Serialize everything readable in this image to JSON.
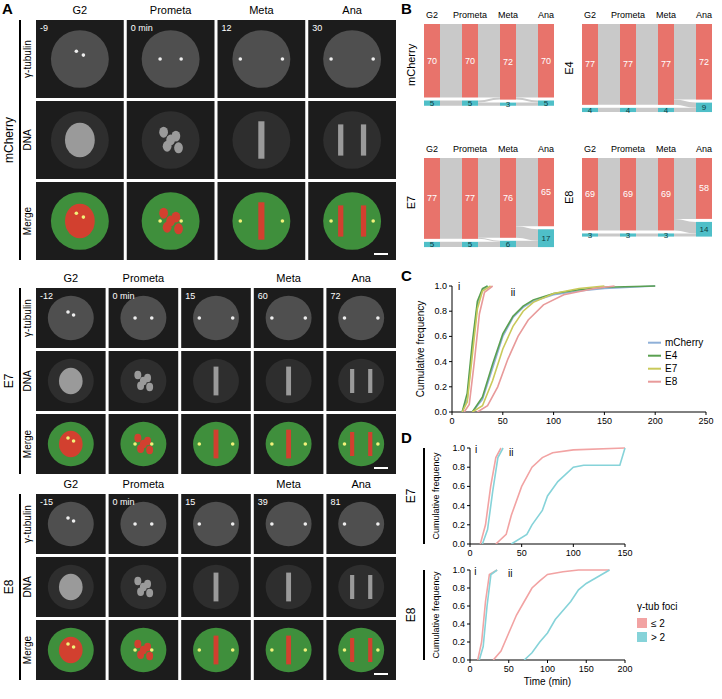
{
  "panel_labels": [
    "A",
    "B",
    "C",
    "D"
  ],
  "micrographs": {
    "channels": [
      "γ-tubulin",
      "DNA",
      "Merge"
    ],
    "groups": [
      {
        "name": "mCherry",
        "stages": [
          "G2",
          "Prometa",
          "Meta",
          "Ana"
        ],
        "times": [
          "-9",
          "0 min",
          "12",
          "30"
        ]
      },
      {
        "name": "E7",
        "stages": [
          "G2",
          "Prometa",
          null,
          "Meta",
          "Ana"
        ],
        "times": [
          "-12",
          "0 min",
          "15",
          "60",
          "72"
        ]
      },
      {
        "name": "E8",
        "stages": [
          "G2",
          "Prometa",
          null,
          "Meta",
          "Ana"
        ],
        "times": [
          "-15",
          "0 min",
          "15",
          "39",
          "81"
        ]
      }
    ]
  },
  "chart_data": [
    {
      "type": "sankey",
      "title": "mCherry",
      "categories": [
        "G2",
        "Prometa",
        "Meta",
        "Ana"
      ],
      "stacked": true,
      "data_labels": true,
      "series": [
        {
          "color": "#e8736b",
          "values": [
            70,
            70,
            72,
            70
          ]
        },
        {
          "color": "#4fbfc8",
          "values": [
            5,
            5,
            3,
            5
          ]
        }
      ]
    },
    {
      "type": "sankey",
      "title": "E4",
      "categories": [
        "G2",
        "Prometa",
        "Meta",
        "Ana"
      ],
      "stacked": true,
      "data_labels": true,
      "series": [
        {
          "color": "#e8736b",
          "values": [
            77,
            77,
            77,
            72
          ]
        },
        {
          "color": "#4fbfc8",
          "values": [
            4,
            4,
            4,
            9
          ]
        }
      ]
    },
    {
      "type": "sankey",
      "title": "E7",
      "categories": [
        "G2",
        "Prometa",
        "Meta",
        "Ana"
      ],
      "stacked": true,
      "data_labels": true,
      "series": [
        {
          "color": "#e8736b",
          "values": [
            77,
            77,
            76,
            65
          ]
        },
        {
          "color": "#4fbfc8",
          "values": [
            5,
            5,
            6,
            17
          ]
        }
      ]
    },
    {
      "type": "sankey",
      "title": "E8",
      "categories": [
        "G2",
        "Prometa",
        "Meta",
        "Ana"
      ],
      "stacked": true,
      "data_labels": true,
      "series": [
        {
          "color": "#e8736b",
          "values": [
            69,
            69,
            69,
            58
          ]
        },
        {
          "color": "#4fbfc8",
          "values": [
            3,
            3,
            3,
            14
          ]
        }
      ]
    },
    {
      "type": "line",
      "y_label": "Cumulative frequency",
      "legend": "right",
      "xlim": [
        0,
        250
      ],
      "xticks": [
        0,
        50,
        100,
        150,
        200,
        250
      ],
      "ylim": [
        0,
        1
      ],
      "yticks": [
        {
          "value": 0,
          "label": "0.0"
        },
        0.2,
        0.4,
        0.6,
        0.8,
        {
          "value": 1,
          "label": "1.0"
        }
      ],
      "annotations": [
        {
          "text": "i",
          "x": 7,
          "y": 0.97
        },
        {
          "text": "ii",
          "x": 60,
          "y": 0.92
        }
      ],
      "series": [
        {
          "name": "mCherry",
          "color": "#8fb0d8",
          "x": [
            10,
            15,
            20,
            25,
            30,
            35,
            null,
            20,
            30,
            40,
            50,
            60,
            70,
            80,
            100,
            125,
            150,
            175,
            200
          ],
          "values": [
            0,
            0.1,
            0.5,
            0.85,
            0.97,
            1,
            null,
            0,
            0.1,
            0.35,
            0.6,
            0.75,
            0.83,
            0.88,
            0.93,
            0.96,
            0.98,
            0.99,
            1
          ]
        },
        {
          "name": "E4",
          "color": "#5aa050",
          "x": [
            10,
            15,
            20,
            25,
            30,
            35,
            null,
            20,
            30,
            40,
            50,
            60,
            70,
            80,
            100,
            125,
            150,
            200
          ],
          "values": [
            0,
            0.15,
            0.55,
            0.88,
            0.98,
            1,
            null,
            0,
            0.12,
            0.38,
            0.62,
            0.76,
            0.84,
            0.89,
            0.94,
            0.97,
            0.99,
            1
          ]
        },
        {
          "name": "E7",
          "color": "#c9c95a",
          "x": [
            10,
            15,
            20,
            25,
            30,
            38,
            null,
            20,
            30,
            40,
            50,
            60,
            70,
            80,
            100,
            125,
            150
          ],
          "values": [
            0,
            0.08,
            0.45,
            0.82,
            0.96,
            1,
            null,
            0,
            0.05,
            0.25,
            0.5,
            0.68,
            0.8,
            0.87,
            0.94,
            0.98,
            1
          ]
        },
        {
          "name": "E8",
          "color": "#e89a9a",
          "x": [
            12,
            17,
            22,
            27,
            32,
            40,
            null,
            25,
            35,
            45,
            55,
            65,
            75,
            90,
            110,
            140,
            160
          ],
          "values": [
            0,
            0.06,
            0.4,
            0.78,
            0.95,
            1,
            null,
            0,
            0.05,
            0.2,
            0.42,
            0.6,
            0.73,
            0.85,
            0.93,
            0.98,
            1
          ]
        }
      ]
    },
    {
      "type": "line",
      "title": "E7",
      "y_label": "Cumulative frequency",
      "xlim": [
        0,
        150
      ],
      "xticks": [
        0,
        50,
        100,
        150
      ],
      "ylim": [
        0,
        1
      ],
      "yticks": [
        {
          "value": 0,
          "label": "0.0"
        },
        0.2,
        0.4,
        0.6,
        0.8,
        {
          "value": 1,
          "label": "1.0"
        }
      ],
      "annotations": [
        {
          "text": "i",
          "x": 6,
          "y": 0.95
        },
        {
          "text": "ii",
          "x": 40,
          "y": 0.92
        }
      ],
      "series": [
        {
          "color": "#f2a3a3",
          "x": [
            10,
            15,
            20,
            25,
            30,
            null,
            25,
            35,
            40,
            50,
            60,
            70,
            80,
            100,
            150
          ],
          "values": [
            0,
            0.2,
            0.6,
            0.9,
            1,
            null,
            0,
            0.1,
            0.3,
            0.6,
            0.8,
            0.9,
            0.95,
            0.98,
            1
          ]
        },
        {
          "color": "#86d3d9",
          "x": [
            12,
            17,
            22,
            27,
            32,
            null,
            40,
            55,
            60,
            70,
            75,
            85,
            100,
            110,
            145,
            150
          ],
          "values": [
            0,
            0.15,
            0.55,
            0.9,
            1,
            null,
            0,
            0.1,
            0.2,
            0.35,
            0.5,
            0.65,
            0.8,
            0.82,
            0.82,
            1
          ]
        }
      ]
    },
    {
      "type": "line",
      "title": "E8",
      "y_label": "Cumulative frequency",
      "x_label": "Time (min)",
      "legend": "right",
      "legend_title": "γ-tub foci",
      "xlim": [
        0,
        200
      ],
      "xticks": [
        0,
        50,
        100,
        150,
        200
      ],
      "ylim": [
        0,
        1
      ],
      "yticks": [
        {
          "value": 0,
          "label": "0.0"
        },
        0.2,
        0.4,
        0.6,
        0.8,
        {
          "value": 1,
          "label": "1.0"
        }
      ],
      "annotations": [
        {
          "text": "i",
          "x": 7,
          "y": 0.95
        },
        {
          "text": "ii",
          "x": 52,
          "y": 0.92
        }
      ],
      "series": [
        {
          "name": "≤ 2",
          "color": "#f2a3a3",
          "x": [
            10,
            15,
            20,
            25,
            35,
            null,
            30,
            40,
            50,
            60,
            70,
            80,
            90,
            100,
            120,
            140,
            180
          ],
          "values": [
            0,
            0.2,
            0.65,
            0.95,
            1,
            null,
            0,
            0.1,
            0.3,
            0.5,
            0.65,
            0.8,
            0.88,
            0.95,
            0.98,
            1,
            1
          ]
        },
        {
          "name": "> 2",
          "color": "#86d3d9",
          "x": [
            12,
            17,
            22,
            27,
            35,
            null,
            70,
            80,
            90,
            100,
            110,
            120,
            130,
            140,
            150,
            160,
            180
          ],
          "values": [
            0,
            0.15,
            0.6,
            0.95,
            1,
            null,
            0,
            0.08,
            0.2,
            0.3,
            0.45,
            0.55,
            0.65,
            0.78,
            0.85,
            0.9,
            1
          ]
        }
      ]
    }
  ]
}
